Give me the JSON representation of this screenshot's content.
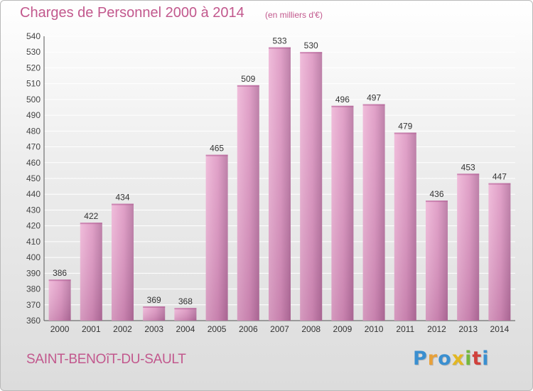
{
  "header": {
    "title": "Charges de Personnel 2000 à 2014",
    "subtitle": "(en milliers d'€)"
  },
  "footer": {
    "city": "SAINT-BENOîT-DU-SAULT",
    "logo": [
      "P",
      "r",
      "o",
      "x",
      "i",
      "t",
      "i"
    ],
    "logo_colors": [
      "#3a8fd0",
      "#e8a13a",
      "#3a8fd0",
      "#e2b723",
      "#73b83e",
      "#d0413c",
      "#3a8fd0"
    ]
  },
  "colors": {
    "bar_light": "#eeb4d6",
    "bar_dark": "#b4709d",
    "text": "#c2588d",
    "grid": "#ffffff"
  },
  "chart_data": {
    "type": "bar",
    "categories": [
      "2000",
      "2001",
      "2002",
      "2003",
      "2004",
      "2005",
      "2006",
      "2007",
      "2008",
      "2009",
      "2010",
      "2011",
      "2012",
      "2013",
      "2014"
    ],
    "values": [
      386,
      422,
      434,
      369,
      368,
      465,
      509,
      533,
      530,
      496,
      497,
      479,
      436,
      453,
      447
    ],
    "title": "Charges de Personnel 2000 à 2014",
    "subtitle": "(en milliers d'€)",
    "xlabel": "",
    "ylabel": "",
    "ylim": [
      360,
      540
    ],
    "yticks": [
      360,
      370,
      380,
      390,
      400,
      410,
      420,
      430,
      440,
      450,
      460,
      470,
      480,
      490,
      500,
      510,
      520,
      530,
      540
    ],
    "grid": true,
    "data_labels": true
  }
}
